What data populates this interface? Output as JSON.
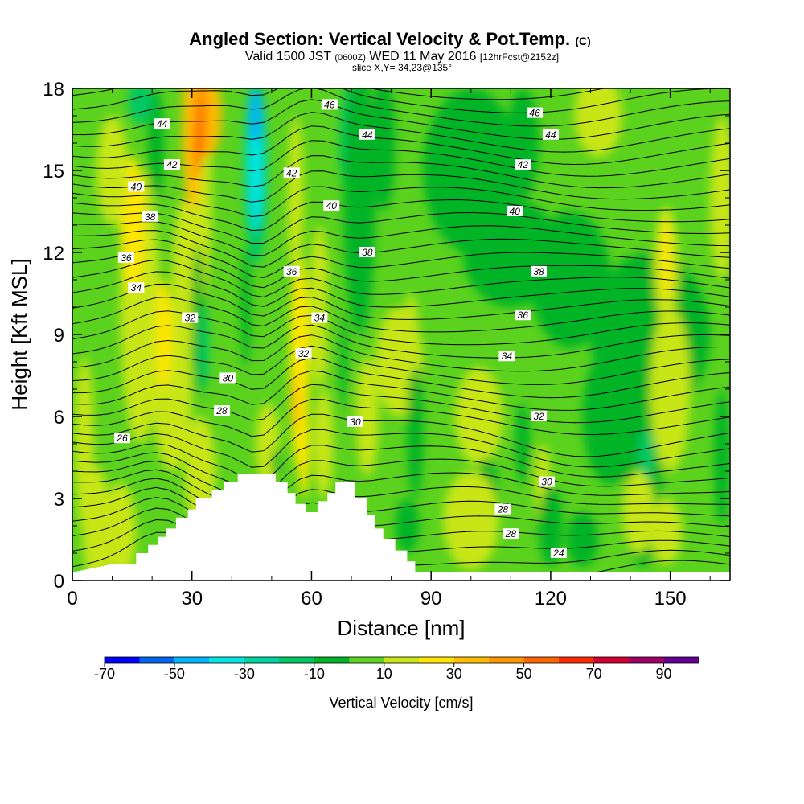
{
  "title": "Angled Section: Vertical Velocity & Pot.Temp.",
  "title_unit": "(C)",
  "subtitle_pre": "Valid 1500 JST",
  "subtitle_utc": "(0600Z)",
  "subtitle_main": "WED 11 May 2016",
  "subtitle_fcst": "[12hrFcst@2152z]",
  "slice": "slice X,Y= 34,23@135°",
  "chart_data": {
    "type": "heatmap",
    "xlabel": "Distance [nm]",
    "ylabel": "Height [Kft MSL]",
    "xlim": [
      0,
      165
    ],
    "ylim": [
      0,
      18
    ],
    "xticks": [
      0,
      30,
      60,
      90,
      120,
      150
    ],
    "yticks": [
      0,
      3,
      6,
      9,
      12,
      15,
      18
    ],
    "field": "Vertical Velocity",
    "colorbar": {
      "label": "Vertical Velocity [cm/s]",
      "tick_labels": [
        -70,
        -50,
        -30,
        -10,
        10,
        30,
        50,
        70,
        90
      ],
      "levels": [
        -70,
        -60,
        -50,
        -40,
        -30,
        -20,
        -10,
        0,
        10,
        20,
        30,
        40,
        50,
        60,
        70,
        80,
        90
      ],
      "colors": [
        "#0000ff",
        "#0064f0",
        "#00b4ff",
        "#00e6e6",
        "#00d2a0",
        "#00c864",
        "#00b428",
        "#5ad21e",
        "#c8e614",
        "#ffe600",
        "#ffbe00",
        "#ff9600",
        "#ff6400",
        "#ff2800",
        "#d20032",
        "#a00064",
        "#640096"
      ]
    },
    "theta_contour_labels": [
      {
        "value": "46",
        "x": 64.5,
        "y": 17.4
      },
      {
        "value": "46",
        "x": 116,
        "y": 17.1
      },
      {
        "value": "44",
        "x": 22.5,
        "y": 16.7
      },
      {
        "value": "44",
        "x": 74,
        "y": 16.3
      },
      {
        "value": "44",
        "x": 120,
        "y": 16.3
      },
      {
        "value": "42",
        "x": 25,
        "y": 15.2
      },
      {
        "value": "42",
        "x": 55,
        "y": 14.9
      },
      {
        "value": "42",
        "x": 113,
        "y": 15.2
      },
      {
        "value": "40",
        "x": 16,
        "y": 14.4
      },
      {
        "value": "40",
        "x": 65,
        "y": 13.7
      },
      {
        "value": "40",
        "x": 111,
        "y": 13.5
      },
      {
        "value": "38",
        "x": 19.5,
        "y": 13.3
      },
      {
        "value": "38",
        "x": 74,
        "y": 12.0
      },
      {
        "value": "38",
        "x": 117,
        "y": 11.3
      },
      {
        "value": "36",
        "x": 13.5,
        "y": 11.8
      },
      {
        "value": "36",
        "x": 55,
        "y": 11.3
      },
      {
        "value": "36",
        "x": 113,
        "y": 9.7
      },
      {
        "value": "34",
        "x": 16,
        "y": 10.7
      },
      {
        "value": "34",
        "x": 62,
        "y": 9.6
      },
      {
        "value": "34",
        "x": 109,
        "y": 8.2
      },
      {
        "value": "32",
        "x": 29.5,
        "y": 9.6
      },
      {
        "value": "32",
        "x": 58,
        "y": 8.3
      },
      {
        "value": "32",
        "x": 117,
        "y": 6.0
      },
      {
        "value": "30",
        "x": 39,
        "y": 7.4
      },
      {
        "value": "30",
        "x": 71,
        "y": 5.8
      },
      {
        "value": "30",
        "x": 119,
        "y": 3.6
      },
      {
        "value": "28",
        "x": 37.5,
        "y": 6.2
      },
      {
        "value": "28",
        "x": 108,
        "y": 2.6
      },
      {
        "value": "28",
        "x": 110,
        "y": 1.7
      },
      {
        "value": "26",
        "x": 12.5,
        "y": 5.2
      },
      {
        "value": "24",
        "x": 122,
        "y": 1.0
      }
    ],
    "terrain": [
      [
        10,
        0.6
      ],
      [
        16,
        0.6
      ],
      [
        16,
        1.0
      ],
      [
        19,
        1.0
      ],
      [
        19,
        1.3
      ],
      [
        21.5,
        1.3
      ],
      [
        21.5,
        1.6
      ],
      [
        23.5,
        1.6
      ],
      [
        23.5,
        1.9
      ],
      [
        26,
        1.9
      ],
      [
        26,
        2.3
      ],
      [
        29,
        2.3
      ],
      [
        29,
        2.6
      ],
      [
        31,
        2.6
      ],
      [
        31,
        3.0
      ],
      [
        35,
        3.0
      ],
      [
        35,
        3.3
      ],
      [
        38,
        3.3
      ],
      [
        38,
        3.6
      ],
      [
        41.5,
        3.6
      ],
      [
        41.5,
        3.9
      ],
      [
        51,
        3.9
      ],
      [
        51,
        3.6
      ],
      [
        54,
        3.6
      ],
      [
        54,
        3.2
      ],
      [
        56,
        3.2
      ],
      [
        56,
        2.8
      ],
      [
        58.5,
        2.8
      ],
      [
        58.5,
        2.5
      ],
      [
        61.5,
        2.5
      ],
      [
        61.5,
        2.9
      ],
      [
        64,
        2.9
      ],
      [
        64,
        3.2
      ],
      [
        66,
        3.2
      ],
      [
        66,
        3.6
      ],
      [
        71,
        3.6
      ],
      [
        71,
        3.0
      ],
      [
        74,
        3.0
      ],
      [
        74,
        2.4
      ],
      [
        76,
        2.4
      ],
      [
        76,
        1.9
      ],
      [
        78,
        1.9
      ],
      [
        78,
        1.5
      ],
      [
        81,
        1.5
      ],
      [
        81,
        1.1
      ],
      [
        84,
        1.1
      ],
      [
        84,
        0.7
      ],
      [
        86,
        0.7
      ],
      [
        86,
        0.3
      ],
      [
        90,
        0.3
      ],
      [
        90,
        0
      ]
    ]
  }
}
